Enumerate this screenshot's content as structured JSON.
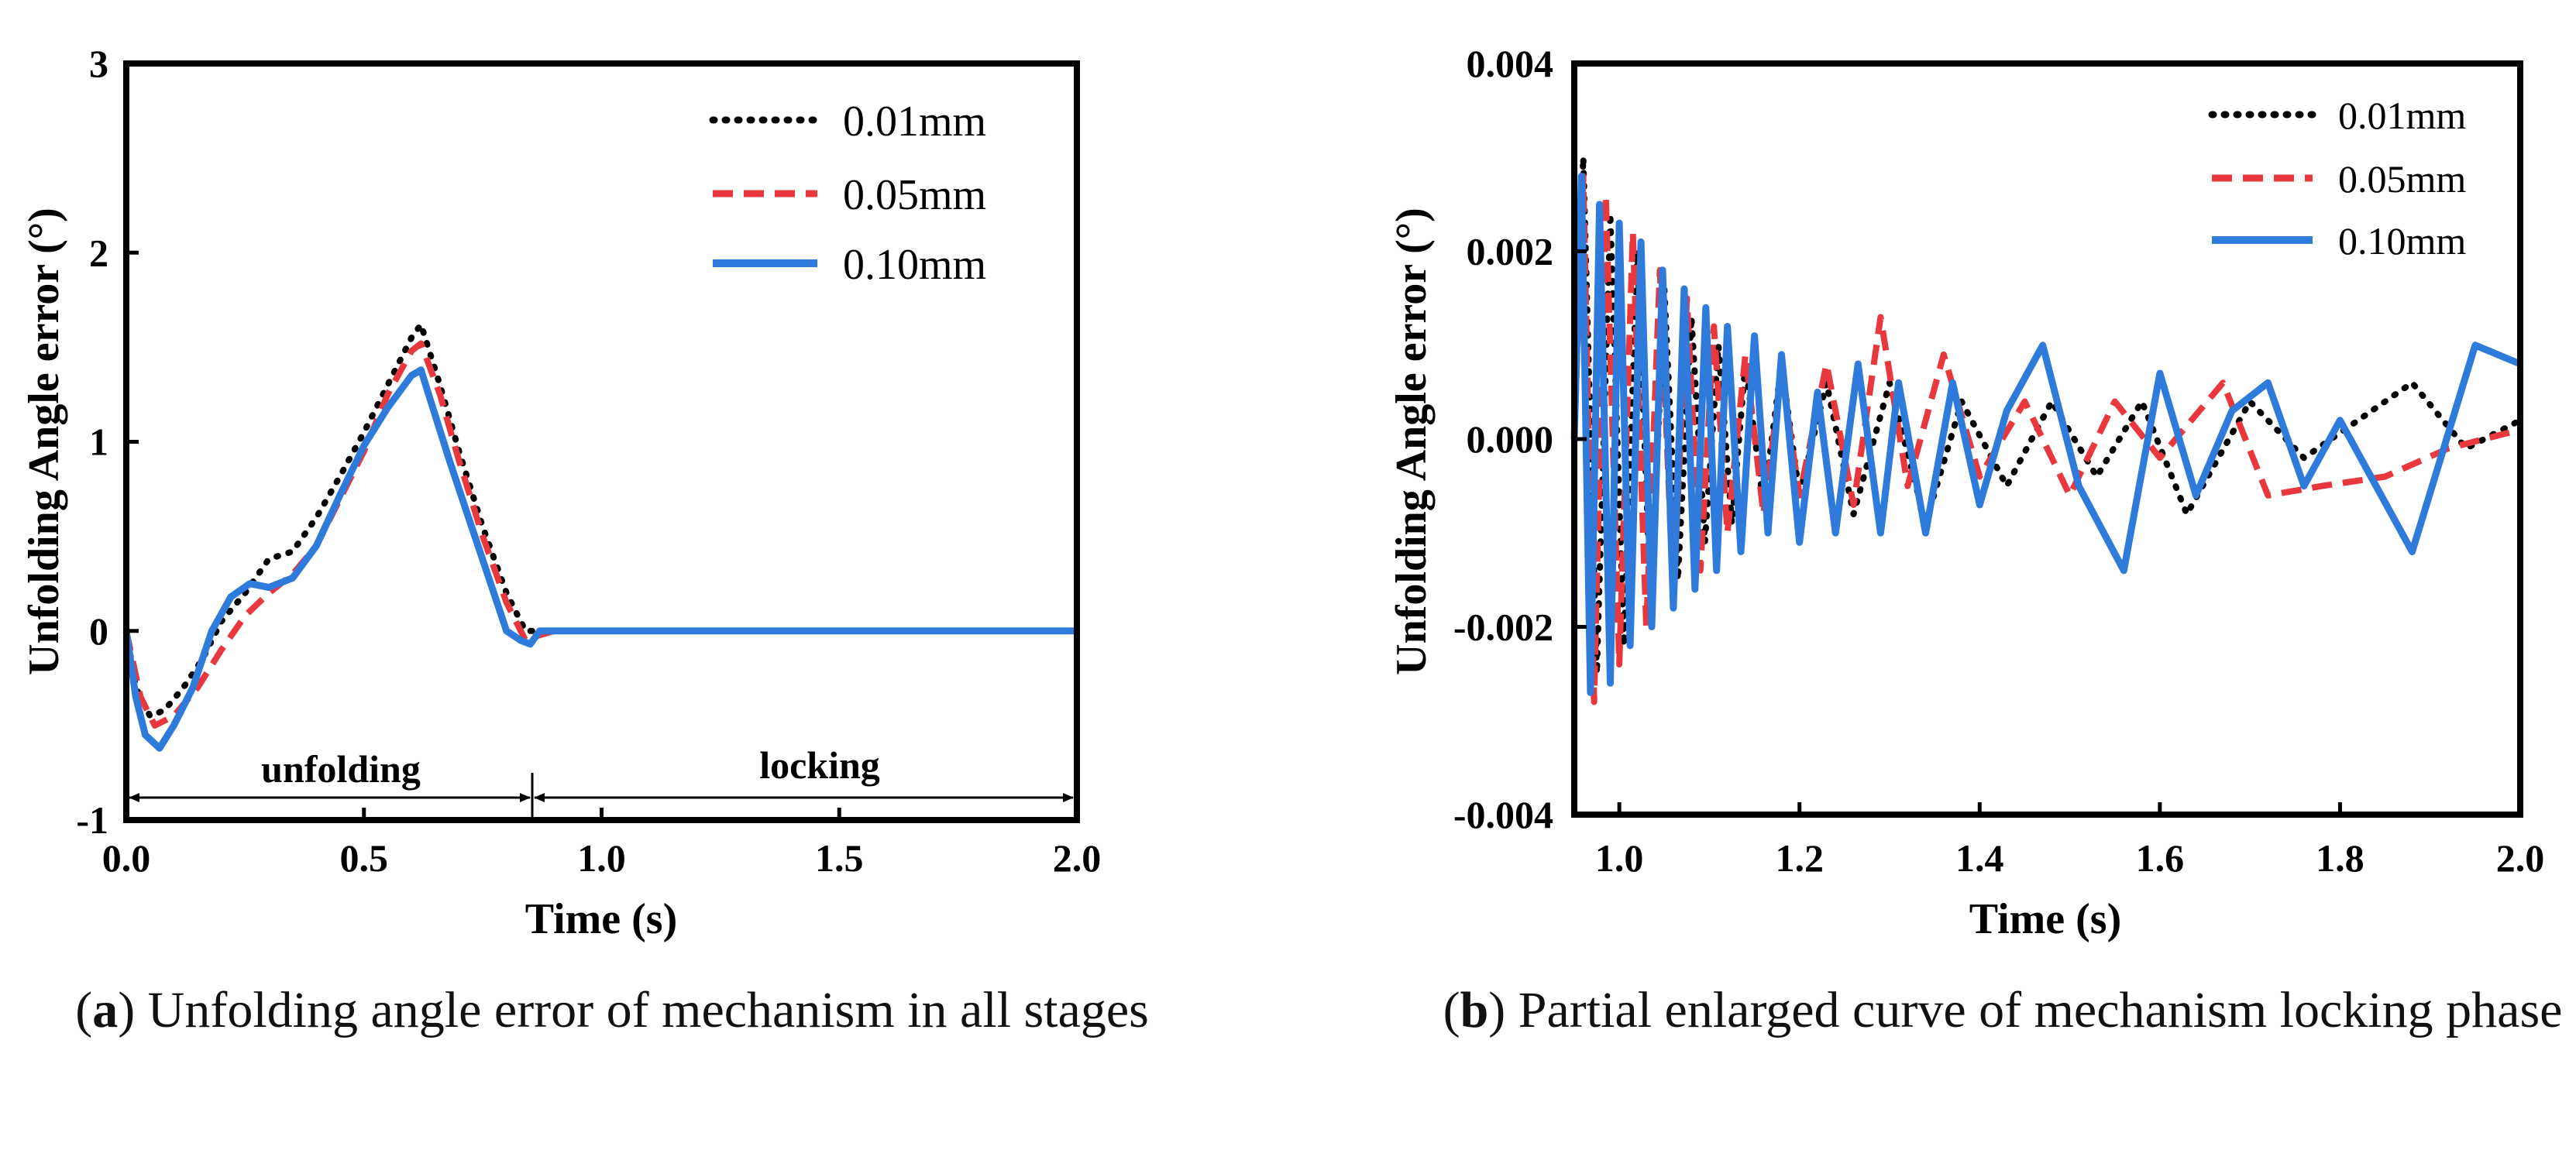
{
  "colors": {
    "s001": "#000000",
    "s005": "#e8383d",
    "s010": "#2e7bdc",
    "axis": "#000000"
  },
  "captions": {
    "a": {
      "letter": "a",
      "text": "Unfolding angle error of mechanism in all stages"
    },
    "b": {
      "letter": "b",
      "text": "Partial enlarged curve of mechanism locking phase"
    }
  },
  "chart_data": [
    {
      "id": "a",
      "type": "line",
      "xlabel": "Time (s)",
      "ylabel": "Unfolding Angle error (°)",
      "xlim": [
        0.0,
        2.0
      ],
      "ylim": [
        -1,
        3
      ],
      "xticks": [
        0.0,
        0.5,
        1.0,
        1.5,
        2.0
      ],
      "xtick_labels": [
        "0.0",
        "0.5",
        "1.0",
        "1.5",
        "2.0"
      ],
      "yticks": [
        -1,
        0,
        1,
        2,
        3
      ],
      "ytick_labels": [
        "-1",
        "0",
        "1",
        "2",
        "3"
      ],
      "legend_position": "top-right",
      "annotations": [
        {
          "text": "unfolding",
          "from": 0.0,
          "to": 0.85,
          "y": -0.88
        },
        {
          "text": "locking",
          "from": 0.85,
          "to": 2.0,
          "y": -0.88
        }
      ],
      "series": [
        {
          "key": "s001",
          "name": "0.01mm",
          "style": "dotted",
          "x": [
            0,
            0.02,
            0.05,
            0.08,
            0.12,
            0.16,
            0.2,
            0.25,
            0.3,
            0.35,
            0.4,
            0.45,
            0.5,
            0.55,
            0.6,
            0.62,
            0.66,
            0.7,
            0.75,
            0.8,
            0.84,
            0.85,
            0.9,
            2.0
          ],
          "y": [
            0,
            -0.3,
            -0.45,
            -0.42,
            -0.3,
            -0.15,
            0.05,
            0.2,
            0.38,
            0.42,
            0.6,
            0.82,
            1.05,
            1.3,
            1.55,
            1.62,
            1.3,
            0.95,
            0.55,
            0.2,
            0.0,
            0.0,
            0.0,
            0.0
          ]
        },
        {
          "key": "s005",
          "name": "0.05mm",
          "style": "dashed",
          "x": [
            0,
            0.03,
            0.06,
            0.1,
            0.15,
            0.2,
            0.25,
            0.3,
            0.35,
            0.4,
            0.45,
            0.5,
            0.55,
            0.6,
            0.62,
            0.66,
            0.7,
            0.75,
            0.8,
            0.84,
            0.86,
            0.9,
            2.0
          ],
          "y": [
            0,
            -0.35,
            -0.5,
            -0.45,
            -0.3,
            -0.1,
            0.08,
            0.2,
            0.3,
            0.45,
            0.7,
            0.95,
            1.25,
            1.48,
            1.52,
            1.25,
            0.9,
            0.5,
            0.15,
            -0.05,
            -0.03,
            0.0,
            0.0
          ]
        },
        {
          "key": "s010",
          "name": "0.10mm",
          "style": "solid",
          "x": [
            0,
            0.02,
            0.04,
            0.07,
            0.1,
            0.14,
            0.18,
            0.22,
            0.26,
            0.3,
            0.35,
            0.4,
            0.45,
            0.5,
            0.55,
            0.6,
            0.62,
            0.64,
            0.68,
            0.72,
            0.76,
            0.8,
            0.83,
            0.85,
            0.87,
            0.9,
            2.0
          ],
          "y": [
            0,
            -0.35,
            -0.55,
            -0.62,
            -0.5,
            -0.3,
            0.0,
            0.18,
            0.25,
            0.23,
            0.28,
            0.45,
            0.72,
            0.98,
            1.18,
            1.35,
            1.38,
            1.22,
            0.9,
            0.6,
            0.3,
            0.0,
            -0.05,
            -0.07,
            0.0,
            0.0,
            0.0
          ]
        }
      ]
    },
    {
      "id": "b",
      "type": "line",
      "xlabel": "Time (s)",
      "ylabel": "Unfolding Angle error (°)",
      "xlim": [
        0.95,
        2.0
      ],
      "ylim": [
        -0.004,
        0.004
      ],
      "xticks": [
        1.0,
        1.2,
        1.4,
        1.6,
        1.8,
        2.0
      ],
      "xtick_labels": [
        "1.0",
        "1.2",
        "1.4",
        "1.6",
        "1.8",
        "2.0"
      ],
      "yticks": [
        -0.004,
        -0.002,
        0.0,
        0.002,
        0.004
      ],
      "ytick_labels": [
        "-0.004",
        "-0.002",
        "0.000",
        "0.002",
        "0.004"
      ],
      "legend_position": "top-right",
      "series": [
        {
          "key": "s001",
          "name": "0.01mm",
          "style": "dotted",
          "x": [
            0.95,
            0.96,
            0.975,
            0.99,
            1.005,
            1.02,
            1.035,
            1.05,
            1.065,
            1.08,
            1.095,
            1.11,
            1.125,
            1.14,
            1.16,
            1.18,
            1.2,
            1.23,
            1.26,
            1.3,
            1.34,
            1.38,
            1.43,
            1.48,
            1.53,
            1.58,
            1.63,
            1.7,
            1.76,
            1.82,
            1.88,
            1.94,
            2.0
          ],
          "y": [
            0.0,
            0.003,
            -0.0025,
            0.0024,
            -0.0022,
            0.002,
            -0.0018,
            0.0016,
            -0.0015,
            0.0013,
            -0.0011,
            0.001,
            -0.0009,
            0.0008,
            -0.0007,
            0.0008,
            -0.0006,
            0.0006,
            -0.0008,
            0.0006,
            -0.0009,
            0.0004,
            -0.0005,
            0.0004,
            -0.0004,
            0.0004,
            -0.0008,
            0.0004,
            -0.0002,
            0.0002,
            0.0006,
            -0.0001,
            0.0002
          ]
        },
        {
          "key": "s005",
          "name": "0.05mm",
          "style": "dashed",
          "x": [
            0.95,
            0.96,
            0.972,
            0.985,
            1.0,
            1.015,
            1.03,
            1.045,
            1.06,
            1.075,
            1.09,
            1.105,
            1.12,
            1.14,
            1.16,
            1.18,
            1.2,
            1.23,
            1.26,
            1.29,
            1.32,
            1.36,
            1.4,
            1.45,
            1.5,
            1.55,
            1.6,
            1.67,
            1.72,
            1.78,
            1.85,
            1.92,
            2.0
          ],
          "y": [
            0.0,
            0.0028,
            -0.0028,
            0.0026,
            -0.0024,
            0.0022,
            -0.002,
            0.0018,
            -0.0017,
            0.0015,
            -0.0014,
            0.0012,
            -0.001,
            0.0009,
            -0.0008,
            0.0007,
            -0.0006,
            0.0008,
            -0.0007,
            0.0013,
            -0.0005,
            0.0009,
            -0.0004,
            0.0004,
            -0.0006,
            0.0004,
            -0.0002,
            0.0006,
            -0.0006,
            -0.0005,
            -0.0004,
            -0.0001,
            0.0001
          ]
        },
        {
          "key": "s010",
          "name": "0.10mm",
          "style": "solid",
          "x": [
            0.95,
            0.958,
            0.968,
            0.978,
            0.99,
            1.0,
            1.012,
            1.024,
            1.036,
            1.048,
            1.06,
            1.072,
            1.084,
            1.096,
            1.108,
            1.12,
            1.135,
            1.15,
            1.165,
            1.18,
            1.2,
            1.22,
            1.24,
            1.265,
            1.29,
            1.31,
            1.34,
            1.37,
            1.4,
            1.43,
            1.47,
            1.51,
            1.56,
            1.6,
            1.64,
            1.68,
            1.72,
            1.76,
            1.8,
            1.88,
            1.95,
            2.0
          ],
          "y": [
            0.0,
            0.0028,
            -0.0027,
            0.0025,
            -0.0026,
            0.0023,
            -0.0022,
            0.0021,
            -0.002,
            0.0018,
            -0.0018,
            0.0016,
            -0.0016,
            0.0014,
            -0.0014,
            0.0012,
            -0.0012,
            0.0011,
            -0.001,
            0.0009,
            -0.0011,
            0.0005,
            -0.001,
            0.0008,
            -0.001,
            0.0006,
            -0.001,
            0.0006,
            -0.0007,
            0.0003,
            0.001,
            -0.0005,
            -0.0014,
            0.0007,
            -0.0006,
            0.0003,
            0.0006,
            -0.0005,
            0.0002,
            -0.0012,
            0.001,
            0.0008
          ]
        }
      ]
    }
  ]
}
